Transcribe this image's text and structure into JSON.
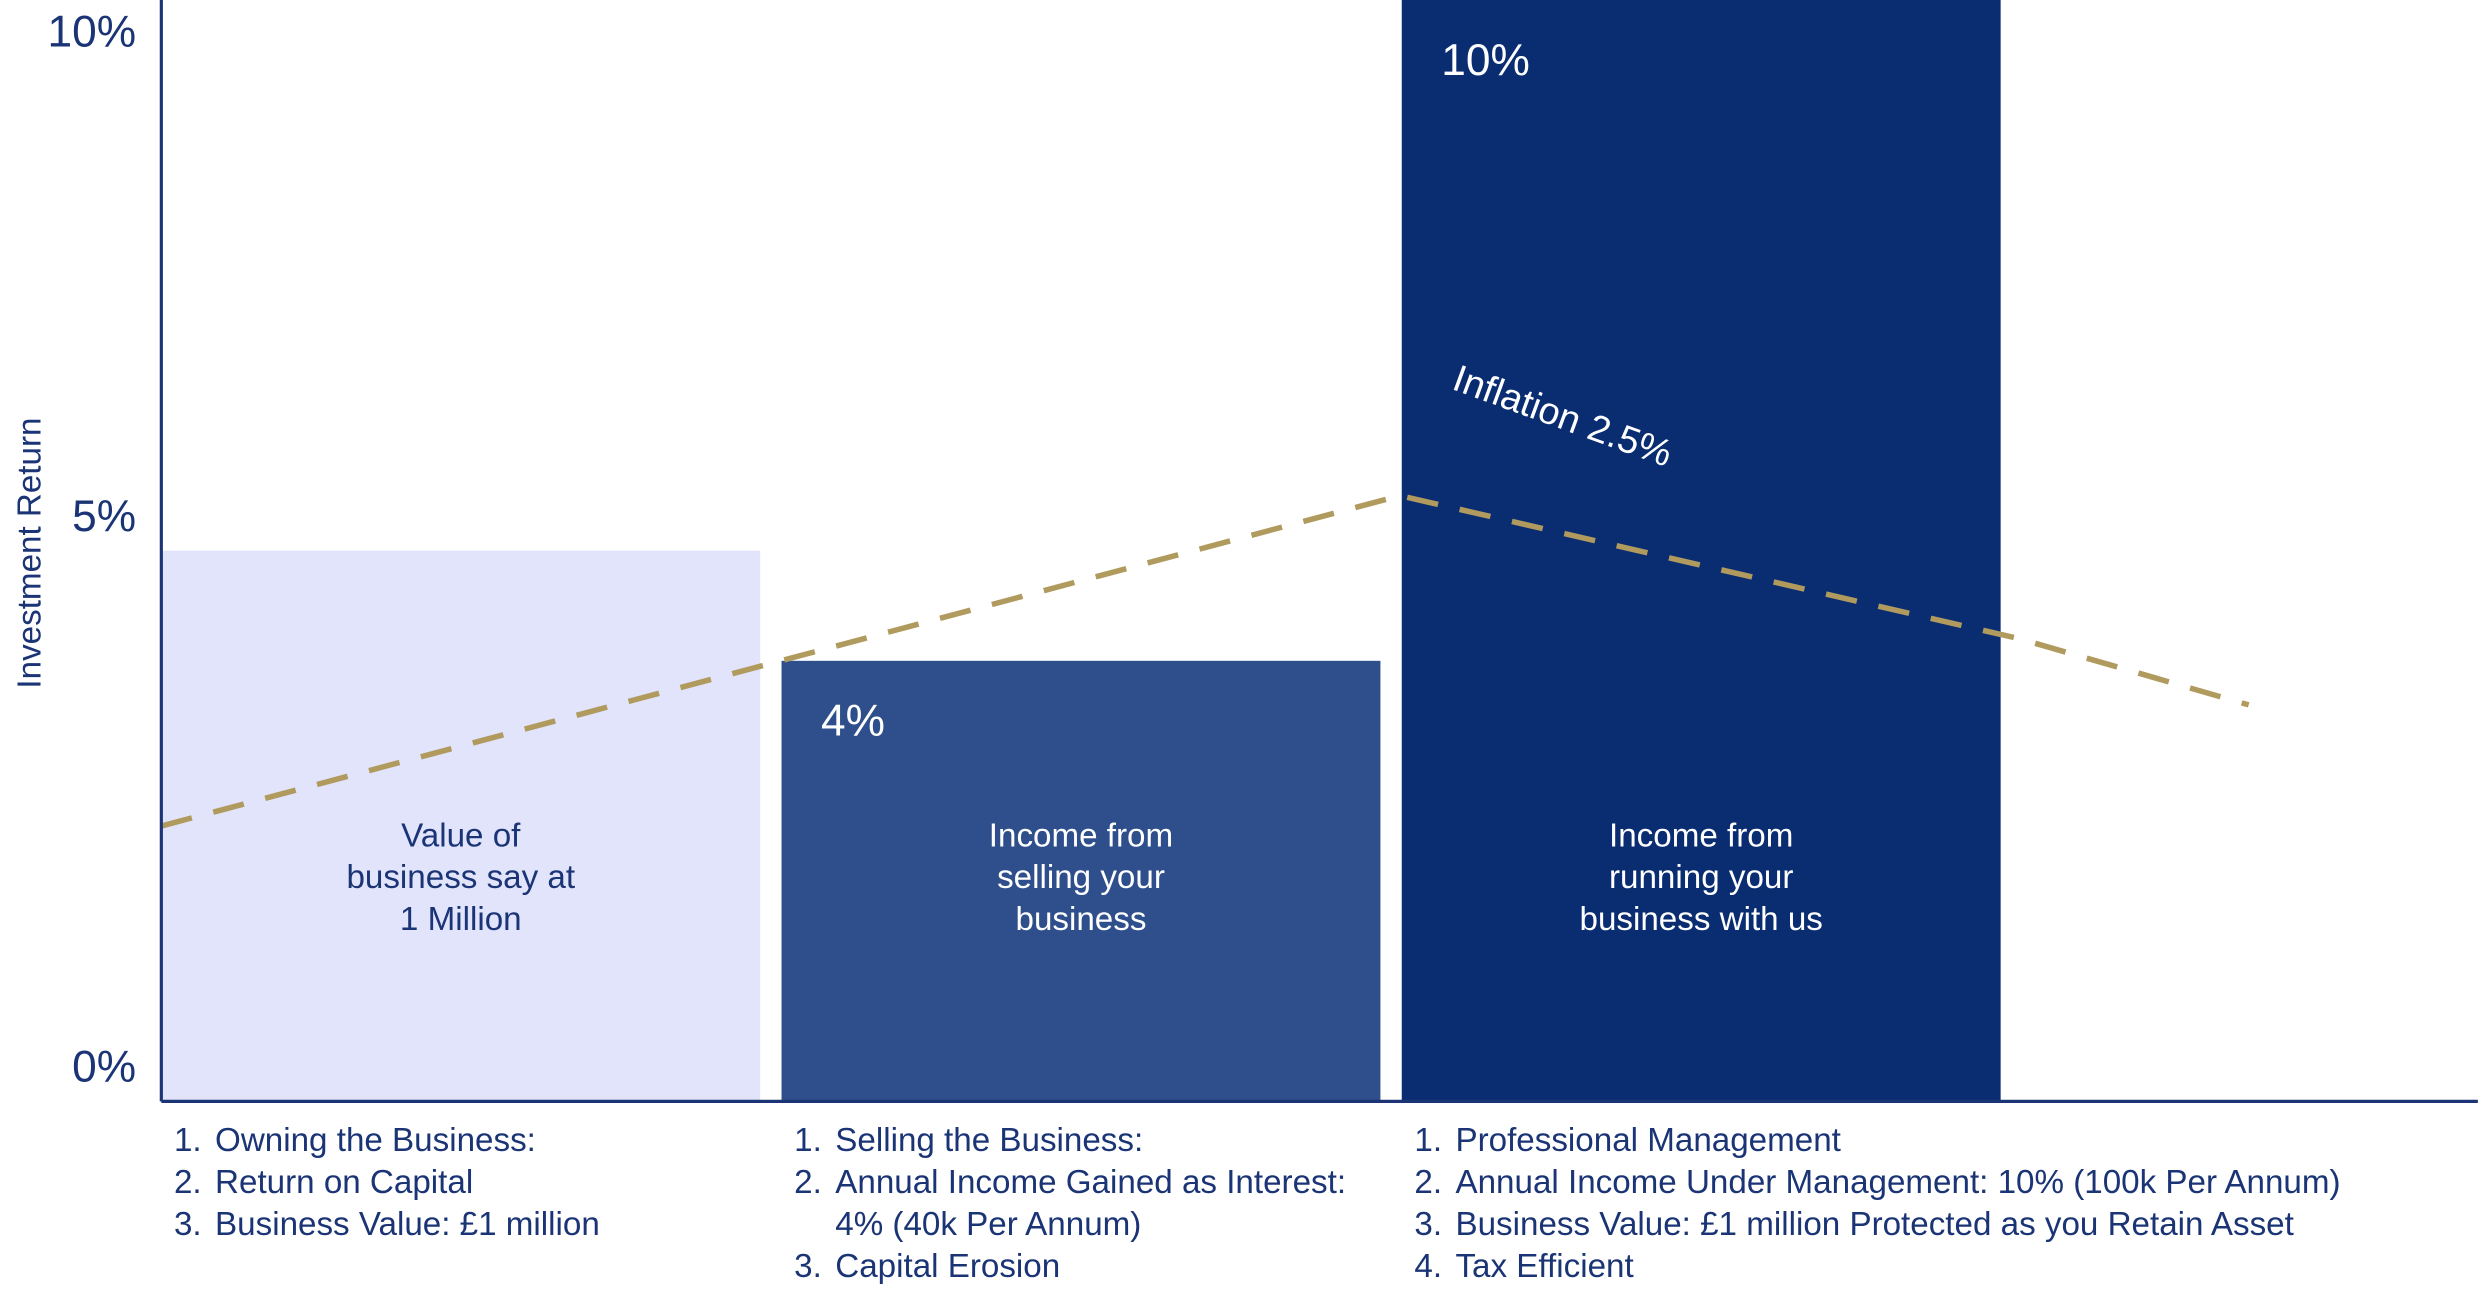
{
  "chart_data": {
    "type": "bar",
    "y_label": "Investment Return",
    "categories": [
      [
        "Value of",
        "business say at",
        "1 Million"
      ],
      [
        "Income from",
        "selling your",
        "business"
      ],
      [
        "Income from",
        "running your",
        "business with us"
      ]
    ],
    "values": [
      5,
      4,
      10
    ],
    "value_labels": [
      null,
      "4%",
      "10%"
    ],
    "colors": [
      "#e1e4fb",
      "#2e4f8c",
      "#0a2d72"
    ],
    "ylim": [
      0,
      10
    ],
    "yticks": [
      {
        "value": 0,
        "label": "0%"
      },
      {
        "value": 5,
        "label": "5%"
      },
      {
        "value": 10,
        "label": "10%"
      }
    ],
    "grid": false,
    "inflation": {
      "label": "Inflation 2.5%",
      "color": "#b09a5e",
      "xlim": [
        0,
        3.74
      ],
      "x": [
        0,
        1,
        2,
        3,
        3.37
      ],
      "values": [
        2.5,
        4,
        5.5,
        4.2,
        3.6
      ]
    },
    "notes": [
      [
        {
          "n": "1.",
          "lines": [
            "Owning the Business:"
          ]
        },
        {
          "n": "2.",
          "lines": [
            "Return on Capital"
          ]
        },
        {
          "n": "3.",
          "lines": [
            "Business Value: £1 million"
          ]
        }
      ],
      [
        {
          "n": "1.",
          "lines": [
            "Selling the Business:"
          ]
        },
        {
          "n": "2.",
          "lines": [
            "Annual Income Gained as Interest:",
            "4% (40k Per Annum)"
          ]
        },
        {
          "n": "3.",
          "lines": [
            "Capital Erosion"
          ]
        }
      ],
      [
        {
          "n": "1.",
          "lines": [
            "Professional Management"
          ]
        },
        {
          "n": "2.",
          "lines": [
            "Annual Income Under Management: 10%  (100k Per Annum)"
          ]
        },
        {
          "n": "3.",
          "lines": [
            "Business Value: £1 million Protected as you Retain Asset"
          ]
        },
        {
          "n": "4.",
          "lines": [
            "Tax Efficient"
          ]
        }
      ]
    ]
  }
}
